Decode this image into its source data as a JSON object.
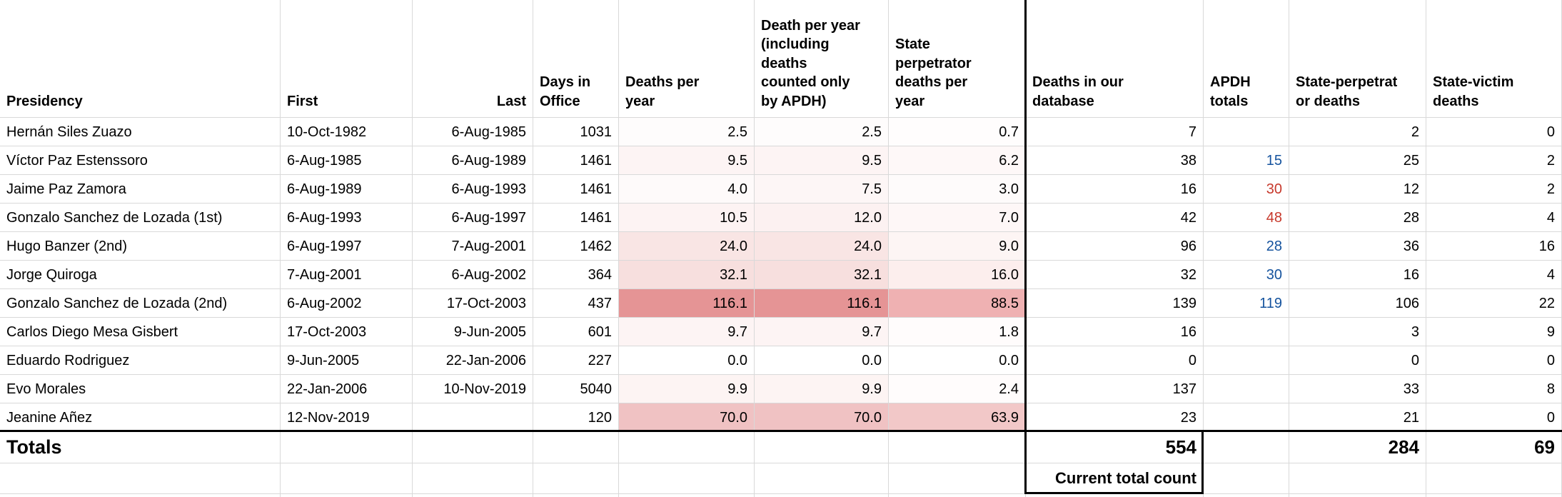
{
  "colors": {
    "conditional_scale_max": "#e59495",
    "apdh_blue": "#15539e",
    "apdh_red": "#c7392c",
    "gridline": "#d9d9d9",
    "thick_border": "#000000"
  },
  "table": {
    "columns": [
      {
        "key": "presidency",
        "label": "Presidency",
        "halign": "left",
        "align": "left"
      },
      {
        "key": "first",
        "label": "First",
        "halign": "left",
        "align": "left"
      },
      {
        "key": "last",
        "label": "Last",
        "halign": "right",
        "align": "right"
      },
      {
        "key": "days-in-office",
        "label": "Days in\nOffice",
        "halign": "left",
        "align": "right"
      },
      {
        "key": "deaths-per-year",
        "label": "Deaths per\nyear",
        "halign": "left",
        "align": "right"
      },
      {
        "key": "deaths-per-year-incl-apdh",
        "label": "Death per year\n(including\ndeaths\ncounted only\nby APDH)",
        "halign": "left",
        "align": "right"
      },
      {
        "key": "state-perpetrator-deaths-per-year",
        "label": "State\nperpetrator\ndeaths per\nyear",
        "halign": "left",
        "align": "right"
      },
      {
        "key": "deaths-in-our-database",
        "label": "Deaths in our\ndatabase",
        "halign": "left",
        "align": "right"
      },
      {
        "key": "apdh-totals",
        "label": "APDH\ntotals",
        "halign": "left",
        "align": "right"
      },
      {
        "key": "state-perpetrator-deaths",
        "label": "State-perpetrat\nor deaths",
        "halign": "left",
        "align": "right"
      },
      {
        "key": "state-victim-deaths",
        "label": "State-victim\ndeaths",
        "halign": "left",
        "align": "right"
      }
    ],
    "rows": [
      {
        "type": "data",
        "cells": [
          {
            "t": "Hernán Siles Zuazo"
          },
          {
            "t": "10-Oct-1982"
          },
          {
            "t": "6-Aug-1985"
          },
          {
            "t": "1031"
          },
          {
            "t": "2.5",
            "bg": "#fefcfc"
          },
          {
            "t": "2.5",
            "bg": "#fefcfc"
          },
          {
            "t": "0.7",
            "bg": "#fffdfd"
          },
          {
            "t": "7"
          },
          {
            "t": ""
          },
          {
            "t": "2"
          },
          {
            "t": "0"
          }
        ]
      },
      {
        "type": "data",
        "cells": [
          {
            "t": "Víctor Paz Estenssoro"
          },
          {
            "t": "6-Aug-1985"
          },
          {
            "t": "6-Aug-1989"
          },
          {
            "t": "1461"
          },
          {
            "t": "9.5",
            "bg": "#fdf4f4"
          },
          {
            "t": "9.5",
            "bg": "#fdf4f4"
          },
          {
            "t": "6.2",
            "bg": "#fef8f8"
          },
          {
            "t": "38"
          },
          {
            "t": "15",
            "c": "#15539e"
          },
          {
            "t": "25"
          },
          {
            "t": "2"
          }
        ]
      },
      {
        "type": "data",
        "cells": [
          {
            "t": "Jaime Paz Zamora"
          },
          {
            "t": "6-Aug-1989"
          },
          {
            "t": "6-Aug-1993"
          },
          {
            "t": "1461"
          },
          {
            "t": "4.0",
            "bg": "#fefafa"
          },
          {
            "t": "7.5",
            "bg": "#fdf6f6"
          },
          {
            "t": "3.0",
            "bg": "#fefbfb"
          },
          {
            "t": "16"
          },
          {
            "t": "30",
            "c": "#c7392c"
          },
          {
            "t": "12"
          },
          {
            "t": "2"
          }
        ]
      },
      {
        "type": "data",
        "cells": [
          {
            "t": "Gonzalo Sanchez de Lozada (1st)"
          },
          {
            "t": "6-Aug-1993"
          },
          {
            "t": "6-Aug-1997"
          },
          {
            "t": "1461"
          },
          {
            "t": "10.5",
            "bg": "#fdf3f3"
          },
          {
            "t": "12.0",
            "bg": "#fcf1f1"
          },
          {
            "t": "7.0",
            "bg": "#fef7f7"
          },
          {
            "t": "42"
          },
          {
            "t": "48",
            "c": "#c7392c"
          },
          {
            "t": "28"
          },
          {
            "t": "4"
          }
        ]
      },
      {
        "type": "data",
        "cells": [
          {
            "t": "Hugo Banzer (2nd)"
          },
          {
            "t": "6-Aug-1997"
          },
          {
            "t": "7-Aug-2001"
          },
          {
            "t": "1462"
          },
          {
            "t": "24.0",
            "bg": "#f9e5e4"
          },
          {
            "t": "24.0",
            "bg": "#f9e5e4"
          },
          {
            "t": "9.0",
            "bg": "#fdf5f4"
          },
          {
            "t": "96"
          },
          {
            "t": "28",
            "c": "#15539e"
          },
          {
            "t": "36"
          },
          {
            "t": "16"
          }
        ]
      },
      {
        "type": "data",
        "cells": [
          {
            "t": "Jorge Quiroga"
          },
          {
            "t": "7-Aug-2001"
          },
          {
            "t": "6-Aug-2002"
          },
          {
            "t": "364"
          },
          {
            "t": "32.1",
            "bg": "#f7dfde"
          },
          {
            "t": "32.1",
            "bg": "#f7dfde"
          },
          {
            "t": "16.0",
            "bg": "#fceeed"
          },
          {
            "t": "32"
          },
          {
            "t": "30",
            "c": "#15539e"
          },
          {
            "t": "16"
          },
          {
            "t": "4"
          }
        ]
      },
      {
        "type": "data",
        "cells": [
          {
            "t": "Gonzalo Sanchez de Lozada (2nd)"
          },
          {
            "t": "6-Aug-2002"
          },
          {
            "t": "17-Oct-2003"
          },
          {
            "t": "437"
          },
          {
            "t": "116.1",
            "bg": "#e59495"
          },
          {
            "t": "116.1",
            "bg": "#e59495"
          },
          {
            "t": "88.5",
            "bg": "#efb1b2"
          },
          {
            "t": "139"
          },
          {
            "t": "119",
            "c": "#15539e"
          },
          {
            "t": "106"
          },
          {
            "t": "22"
          }
        ]
      },
      {
        "type": "data",
        "cells": [
          {
            "t": "Carlos Diego Mesa Gisbert"
          },
          {
            "t": "17-Oct-2003"
          },
          {
            "t": "9-Jun-2005"
          },
          {
            "t": "601"
          },
          {
            "t": "9.7",
            "bg": "#fdf4f4"
          },
          {
            "t": "9.7",
            "bg": "#fdf4f4"
          },
          {
            "t": "1.8",
            "bg": "#fffcfc"
          },
          {
            "t": "16"
          },
          {
            "t": ""
          },
          {
            "t": "3"
          },
          {
            "t": "9"
          }
        ]
      },
      {
        "type": "data",
        "cells": [
          {
            "t": "Eduardo Rodriguez"
          },
          {
            "t": "9-Jun-2005"
          },
          {
            "t": "22-Jan-2006"
          },
          {
            "t": "227"
          },
          {
            "t": "0.0",
            "bg": "#ffffff"
          },
          {
            "t": "0.0",
            "bg": "#ffffff"
          },
          {
            "t": "0.0",
            "bg": "#ffffff"
          },
          {
            "t": "0"
          },
          {
            "t": ""
          },
          {
            "t": "0"
          },
          {
            "t": "0"
          }
        ]
      },
      {
        "type": "data",
        "cells": [
          {
            "t": "Evo Morales"
          },
          {
            "t": "22-Jan-2006"
          },
          {
            "t": "10-Nov-2019"
          },
          {
            "t": "5040"
          },
          {
            "t": "9.9",
            "bg": "#fdf4f3"
          },
          {
            "t": "9.9",
            "bg": "#fdf4f3"
          },
          {
            "t": "2.4",
            "bg": "#fffcfc"
          },
          {
            "t": "137"
          },
          {
            "t": ""
          },
          {
            "t": "33"
          },
          {
            "t": "8"
          }
        ]
      },
      {
        "type": "data",
        "cells": [
          {
            "t": "Jeanine Añez"
          },
          {
            "t": "12-Nov-2019"
          },
          {
            "t": ""
          },
          {
            "t": "120"
          },
          {
            "t": "70.0",
            "bg": "#f0c2c3"
          },
          {
            "t": "70.0",
            "bg": "#f0c2c3"
          },
          {
            "t": "63.9",
            "bg": "#f2c8c8"
          },
          {
            "t": "23"
          },
          {
            "t": ""
          },
          {
            "t": "21"
          },
          {
            "t": "0"
          }
        ]
      },
      {
        "type": "totals",
        "cells": [
          {
            "t": "Totals"
          },
          {
            "t": ""
          },
          {
            "t": ""
          },
          {
            "t": ""
          },
          {
            "t": ""
          },
          {
            "t": ""
          },
          {
            "t": ""
          },
          {
            "t": "554"
          },
          {
            "t": ""
          },
          {
            "t": "284"
          },
          {
            "t": "69"
          }
        ]
      },
      {
        "type": "count",
        "cells": [
          {
            "t": ""
          },
          {
            "t": ""
          },
          {
            "t": ""
          },
          {
            "t": ""
          },
          {
            "t": ""
          },
          {
            "t": ""
          },
          {
            "t": ""
          },
          {
            "t": "Current total count"
          },
          {
            "t": ""
          },
          {
            "t": ""
          },
          {
            "t": ""
          }
        ]
      },
      {
        "type": "sliver",
        "cells": [
          {
            "t": ""
          },
          {
            "t": ""
          },
          {
            "t": ""
          },
          {
            "t": ""
          },
          {
            "t": ""
          },
          {
            "t": ""
          },
          {
            "t": ""
          },
          {
            "t": ""
          },
          {
            "t": ""
          },
          {
            "t": ""
          },
          {
            "t": ""
          }
        ]
      }
    ]
  }
}
